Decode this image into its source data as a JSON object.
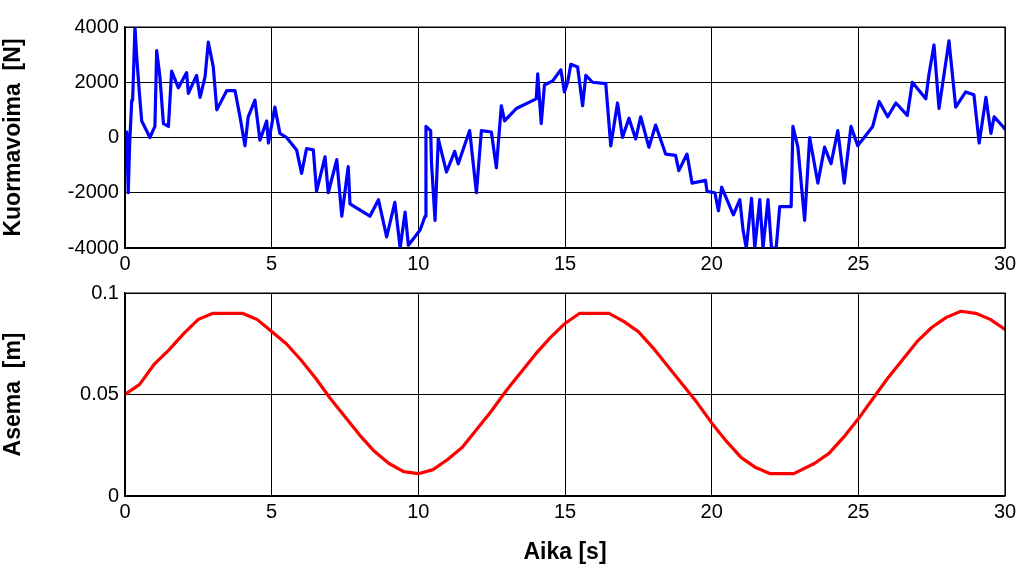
{
  "chart_data": [
    {
      "type": "line",
      "ylabel": "Kuormavoima  [N]",
      "xlim": [
        0,
        30
      ],
      "xticks": [
        0,
        5,
        10,
        15,
        20,
        25,
        30
      ],
      "ylim": [
        -4000,
        4000
      ],
      "yticks": [
        -4000,
        -2000,
        0,
        2000,
        4000
      ],
      "grid": true,
      "legend": false,
      "marker": "none",
      "line_style": "solid",
      "series": [
        {
          "color": "#0000ff",
          "x": [
            0,
            0.06,
            0.11,
            0.16,
            0.23,
            0.26,
            0.34,
            0.4,
            0.51,
            0.57,
            0.85,
            1.02,
            1.08,
            1.19,
            1.31,
            1.48,
            1.59,
            1.82,
            2.1,
            2.16,
            2.44,
            2.56,
            2.73,
            2.84,
            3.01,
            3.13,
            3.47,
            3.75,
            3.92,
            4.09,
            4.2,
            4.43,
            4.6,
            4.83,
            4.89,
            5.11,
            5.28,
            5.51,
            5.85,
            6.02,
            6.19,
            6.42,
            6.53,
            6.82,
            6.93,
            7.22,
            7.39,
            7.61,
            7.67,
            8.35,
            8.64,
            8.92,
            9.2,
            9.38,
            9.55,
            9.66,
            10.06,
            10.23,
            10.26,
            10.42,
            10.45,
            10.57,
            10.68,
            10.96,
            11.24,
            11.36,
            11.75,
            11.98,
            12.15,
            12.49,
            12.66,
            12.83,
            12.94,
            13.34,
            14.02,
            14.07,
            14.19,
            14.3,
            14.58,
            14.86,
            14.98,
            15.09,
            15.2,
            15.43,
            15.6,
            15.71,
            15.94,
            16.39,
            16.56,
            16.79,
            16.96,
            17.18,
            17.41,
            17.58,
            17.86,
            18.09,
            18.43,
            18.77,
            18.88,
            19.16,
            19.33,
            19.79,
            19.84,
            20.11,
            20.23,
            20.34,
            20.74,
            20.96,
            21.07,
            21.18,
            21.36,
            21.47,
            21.64,
            21.75,
            21.92,
            22.04,
            22.2,
            22.32,
            22.71,
            22.77,
            22.94,
            23.17,
            23.34,
            23.62,
            23.85,
            24.07,
            24.3,
            24.52,
            24.75,
            24.98,
            25.49,
            25.71,
            26,
            26.28,
            26.67,
            26.84,
            27.3,
            27.41,
            27.58,
            27.75,
            28.09,
            28.32,
            28.66,
            28.94,
            29.12,
            29.35,
            29.52,
            29.63,
            29.97,
            30
          ],
          "values": [
            -300,
            200,
            -2000,
            -200,
            1350,
            1350,
            4000,
            2900,
            1350,
            600,
            0,
            400,
            3150,
            2200,
            500,
            400,
            2400,
            1800,
            2350,
            1600,
            2250,
            1450,
            2200,
            3450,
            2550,
            1000,
            1700,
            1700,
            750,
            -300,
            750,
            1350,
            -100,
            600,
            -200,
            1100,
            150,
            0,
            -450,
            -1300,
            -400,
            -450,
            -1950,
            -700,
            -2000,
            -800,
            -2850,
            -1050,
            -2400,
            -2850,
            -2250,
            -3600,
            -2350,
            -4000,
            -2700,
            -3900,
            -3350,
            -2850,
            400,
            250,
            -950,
            -3000,
            -50,
            -1250,
            -500,
            -950,
            250,
            -2000,
            250,
            200,
            -1100,
            1150,
            600,
            1050,
            1400,
            2300,
            500,
            1900,
            2050,
            2450,
            1650,
            2000,
            2650,
            2550,
            1150,
            2250,
            2000,
            1950,
            -300,
            1250,
            0,
            700,
            -50,
            750,
            -350,
            450,
            -600,
            -650,
            -1200,
            -600,
            -1650,
            -1550,
            -1950,
            -2000,
            -2650,
            -1800,
            -2800,
            -2250,
            -3350,
            -4000,
            -2200,
            -4000,
            -2250,
            -4000,
            -2250,
            -4000,
            -4000,
            -2500,
            -2500,
            400,
            -350,
            -3000,
            0,
            -1650,
            -350,
            -950,
            250,
            -1650,
            400,
            -300,
            400,
            1300,
            750,
            1250,
            800,
            2000,
            1400,
            2300,
            3350,
            1050,
            3500,
            1100,
            1650,
            1550,
            -200,
            1450,
            150,
            750,
            350,
            300
          ]
        }
      ]
    },
    {
      "type": "line",
      "xlabel": "Aika [s]",
      "ylabel": "Asema  [m]",
      "xlim": [
        0,
        30
      ],
      "xticks": [
        0,
        5,
        10,
        15,
        20,
        25,
        30
      ],
      "ylim": [
        0,
        0.1
      ],
      "yticks": [
        0,
        0.05,
        0.1
      ],
      "grid": true,
      "legend": false,
      "marker": "none",
      "line_style": "solid",
      "series": [
        {
          "color": "#ff0000",
          "x": [
            0,
            0.5,
            1,
            1.5,
            2,
            2.5,
            3,
            4,
            4.5,
            5,
            5.5,
            6,
            6.5,
            7,
            7.5,
            8,
            8.5,
            9,
            9.5,
            10,
            10.5,
            11,
            11.5,
            12,
            12.5,
            13,
            13.5,
            14,
            14.5,
            15,
            15.5,
            16.5,
            17,
            17.5,
            18,
            18.5,
            19,
            19.5,
            20,
            20.5,
            21,
            21.5,
            22,
            22.8,
            23.5,
            24,
            24.5,
            25,
            25.5,
            26,
            26.5,
            27,
            27.5,
            28,
            28.5,
            29,
            29.5,
            30
          ],
          "values": [
            0.05,
            0.055,
            0.065,
            0.072,
            0.08,
            0.087,
            0.09,
            0.09,
            0.087,
            0.081,
            0.075,
            0.067,
            0.058,
            0.048,
            0.039,
            0.03,
            0.022,
            0.016,
            0.012,
            0.011,
            0.013,
            0.018,
            0.024,
            0.033,
            0.042,
            0.052,
            0.061,
            0.07,
            0.078,
            0.085,
            0.09,
            0.09,
            0.086,
            0.081,
            0.073,
            0.064,
            0.055,
            0.046,
            0.036,
            0.027,
            0.019,
            0.014,
            0.011,
            0.011,
            0.016,
            0.021,
            0.029,
            0.038,
            0.048,
            0.058,
            0.067,
            0.076,
            0.083,
            0.088,
            0.091,
            0.09,
            0.087,
            0.082
          ]
        }
      ]
    }
  ]
}
